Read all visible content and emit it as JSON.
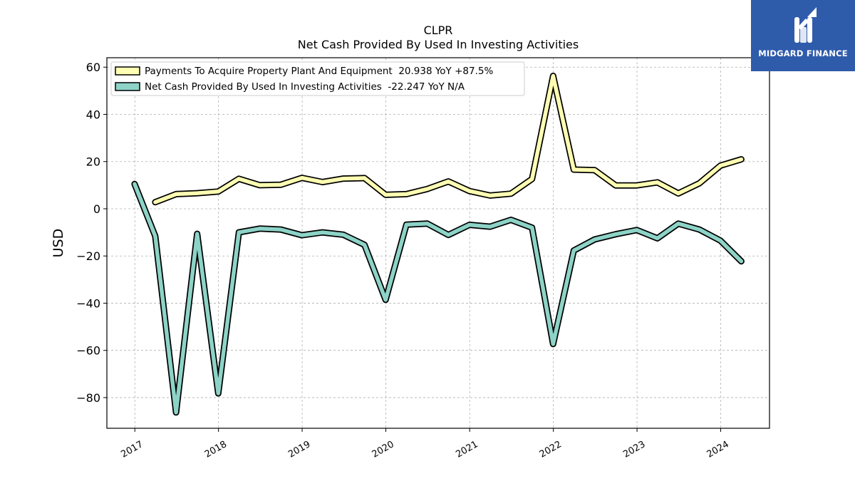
{
  "logo": {
    "text": "MIDGARD FINANCE",
    "bg_color": "#2f5bab"
  },
  "chart_data": {
    "type": "line",
    "title": "CLPR",
    "subtitle": "Net Cash Provided By Used In Investing Activities",
    "ylabel": "USD",
    "xlabel": "",
    "ylim": [
      -93,
      64
    ],
    "yticks": [
      60,
      40,
      20,
      0,
      -20,
      -40,
      -60,
      -80
    ],
    "xlim": [
      "2016-09",
      "2024-08"
    ],
    "xticks": [
      "2017",
      "2018",
      "2019",
      "2020",
      "2021",
      "2022",
      "2023",
      "2024"
    ],
    "grid": true,
    "legend_position": "top-left",
    "series": [
      {
        "name": "Payments To Acquire Property Plant And Equipment  20.938 YoY +87.5%",
        "color": "#ffffb3",
        "x": [
          "2017-03-31",
          "2017-06-30",
          "2017-09-30",
          "2017-12-31",
          "2018-03-31",
          "2018-06-30",
          "2018-09-30",
          "2018-12-31",
          "2019-03-31",
          "2019-06-30",
          "2019-09-30",
          "2019-12-31",
          "2020-03-31",
          "2020-06-30",
          "2020-09-30",
          "2020-12-31",
          "2021-03-31",
          "2021-06-30",
          "2021-09-30",
          "2021-12-31",
          "2022-03-31",
          "2022-06-30",
          "2022-09-30",
          "2022-12-31",
          "2023-03-31",
          "2023-06-30",
          "2023-09-30",
          "2023-12-31",
          "2024-03-31"
        ],
        "values": [
          2.8,
          6.2,
          6.6,
          7.3,
          12.7,
          10.0,
          10.2,
          13.1,
          11.3,
          12.8,
          13.0,
          5.9,
          6.2,
          8.4,
          11.6,
          7.5,
          5.6,
          6.4,
          12.6,
          56.3,
          16.6,
          16.4,
          9.9,
          9.9,
          11.2,
          6.5,
          10.8,
          18.3,
          20.938
        ]
      },
      {
        "name": "Net Cash Provided By Used In Investing Activities  -22.247 YoY N/A",
        "color": "#8dd3c7",
        "x": [
          "2016-12-31",
          "2017-03-31",
          "2017-06-30",
          "2017-09-30",
          "2017-12-31",
          "2018-03-31",
          "2018-06-30",
          "2018-09-30",
          "2018-12-31",
          "2019-03-31",
          "2019-06-30",
          "2019-09-30",
          "2019-12-31",
          "2020-03-31",
          "2020-06-30",
          "2020-09-30",
          "2020-12-31",
          "2021-03-31",
          "2021-06-30",
          "2021-09-30",
          "2021-12-31",
          "2022-03-31",
          "2022-06-30",
          "2022-09-30",
          "2022-12-31",
          "2023-03-31",
          "2023-06-30",
          "2023-09-30",
          "2023-12-31",
          "2024-03-31"
        ],
        "values": [
          10.5,
          -11.6,
          -86.3,
          -10.6,
          -78.2,
          -10.0,
          -8.4,
          -8.8,
          -11.2,
          -10.0,
          -11.0,
          -15.3,
          -38.6,
          -6.7,
          -6.3,
          -11.1,
          -6.8,
          -7.6,
          -4.7,
          -8.0,
          -57.3,
          -17.7,
          -13.0,
          -10.8,
          -9.0,
          -12.5,
          -6.3,
          -8.8,
          -13.5,
          -22.247
        ]
      }
    ]
  }
}
